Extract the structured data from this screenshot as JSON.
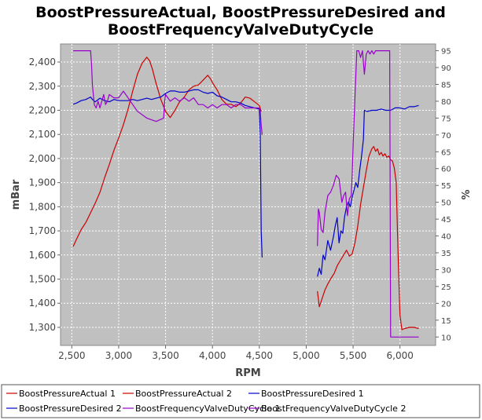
{
  "chart_data": {
    "type": "line",
    "title_lines": [
      "BoostPressureActual, BoostPressureDesired and",
      "BoostFrequencyValveDutyCycle"
    ],
    "xlabel": "RPM",
    "ylabel": "mBar",
    "y2label": "%",
    "xlim": [
      2380,
      6380
    ],
    "ylim": [
      1225,
      2475
    ],
    "y2lim": [
      7.5,
      97
    ],
    "x_ticks": [
      2500,
      3000,
      3500,
      4000,
      4500,
      5000,
      5500,
      6000
    ],
    "x_tick_labels": [
      "2,500",
      "3,000",
      "3,500",
      "4,000",
      "4,500",
      "5,000",
      "5,500",
      "6,000"
    ],
    "y_ticks": [
      1300,
      1400,
      1500,
      1600,
      1700,
      1800,
      1900,
      2000,
      2100,
      2200,
      2300,
      2400
    ],
    "y_tick_labels": [
      "1,300",
      "1,400",
      "1,500",
      "1,600",
      "1,700",
      "1,800",
      "1,900",
      "2,000",
      "2,100",
      "2,200",
      "2,300",
      "2,400"
    ],
    "y2_ticks": [
      10,
      15,
      20,
      25,
      30,
      35,
      40,
      45,
      50,
      55,
      60,
      65,
      70,
      75,
      80,
      85,
      90,
      95
    ],
    "grid": true,
    "legend_position": "bottom",
    "series": [
      {
        "name": "BoostPressureActual 1",
        "axis": "left",
        "color": "#cc0000",
        "x": [
          2515,
          2550,
          2600,
          2650,
          2700,
          2750,
          2800,
          2850,
          2900,
          2950,
          3000,
          3050,
          3100,
          3150,
          3200,
          3250,
          3300,
          3330,
          3360,
          3400,
          3450,
          3500,
          3550,
          3600,
          3650,
          3700,
          3750,
          3800,
          3850,
          3900,
          3950,
          3980,
          4000,
          4050,
          4100,
          4150,
          4200,
          4250,
          4300,
          4350,
          4400,
          4450,
          4500,
          4520
        ],
        "y": [
          1635,
          1665,
          1705,
          1735,
          1775,
          1815,
          1860,
          1920,
          1975,
          2035,
          2085,
          2140,
          2205,
          2280,
          2350,
          2395,
          2420,
          2405,
          2370,
          2310,
          2245,
          2195,
          2170,
          2200,
          2235,
          2255,
          2285,
          2300,
          2305,
          2325,
          2345,
          2330,
          2315,
          2285,
          2245,
          2225,
          2225,
          2215,
          2230,
          2255,
          2250,
          2235,
          2220,
          2195
        ]
      },
      {
        "name": "BoostPressureActual 2",
        "axis": "left",
        "color": "#cc0000",
        "x": [
          5120,
          5140,
          5170,
          5200,
          5230,
          5260,
          5300,
          5330,
          5360,
          5400,
          5430,
          5460,
          5490,
          5520,
          5550,
          5580,
          5610,
          5640,
          5670,
          5700,
          5720,
          5740,
          5760,
          5780,
          5800,
          5820,
          5840,
          5860,
          5880,
          5900,
          5920,
          5940,
          5960,
          5980,
          6000,
          6020,
          6050,
          6100,
          6150,
          6200
        ],
        "y": [
          1450,
          1385,
          1420,
          1455,
          1480,
          1500,
          1525,
          1555,
          1575,
          1600,
          1620,
          1595,
          1605,
          1650,
          1720,
          1810,
          1880,
          1950,
          2010,
          2040,
          2050,
          2030,
          2040,
          2015,
          2025,
          2010,
          2020,
          2005,
          2010,
          1995,
          1990,
          1960,
          1900,
          1600,
          1350,
          1290,
          1295,
          1300,
          1300,
          1295
        ]
      },
      {
        "name": "BoostPressureDesired 1",
        "axis": "left",
        "color": "#0000cc",
        "x": [
          2515,
          2550,
          2600,
          2650,
          2700,
          2720,
          2750,
          2800,
          2850,
          2900,
          2950,
          3000,
          3050,
          3100,
          3150,
          3200,
          3250,
          3300,
          3350,
          3400,
          3450,
          3500,
          3550,
          3600,
          3650,
          3700,
          3750,
          3800,
          3850,
          3900,
          3950,
          4000,
          4050,
          4100,
          4150,
          4200,
          4250,
          4300,
          4350,
          4400,
          4450,
          4500,
          4510,
          4520,
          4530
        ],
        "y": [
          2225,
          2230,
          2240,
          2245,
          2255,
          2245,
          2235,
          2250,
          2240,
          2235,
          2245,
          2240,
          2240,
          2240,
          2245,
          2240,
          2245,
          2250,
          2245,
          2250,
          2255,
          2270,
          2280,
          2280,
          2275,
          2275,
          2280,
          2285,
          2285,
          2275,
          2270,
          2275,
          2260,
          2255,
          2245,
          2235,
          2235,
          2230,
          2220,
          2215,
          2210,
          2205,
          2100,
          1700,
          1590
        ]
      },
      {
        "name": "BoostPressureDesired 2",
        "axis": "left",
        "color": "#0000cc",
        "x": [
          5120,
          5140,
          5160,
          5180,
          5200,
          5230,
          5260,
          5290,
          5310,
          5330,
          5350,
          5370,
          5390,
          5410,
          5430,
          5450,
          5470,
          5490,
          5510,
          5530,
          5550,
          5570,
          5590,
          5610,
          5620,
          5650,
          5700,
          5750,
          5800,
          5850,
          5900,
          5950,
          6000,
          6050,
          6100,
          6150,
          6200
        ],
        "y": [
          1510,
          1545,
          1520,
          1600,
          1580,
          1660,
          1620,
          1675,
          1720,
          1755,
          1650,
          1700,
          1690,
          1760,
          1800,
          1820,
          1800,
          1840,
          1870,
          1900,
          1880,
          1950,
          2010,
          2080,
          2200,
          2195,
          2200,
          2200,
          2205,
          2200,
          2200,
          2210,
          2210,
          2205,
          2215,
          2215,
          2220
        ]
      },
      {
        "name": "BoostFrequencyValveDutyCycle 1",
        "axis": "right",
        "color": "#9900cc",
        "x": [
          2515,
          2560,
          2600,
          2650,
          2700,
          2710,
          2720,
          2740,
          2760,
          2780,
          2800,
          2820,
          2840,
          2860,
          2880,
          2900,
          2950,
          3000,
          3050,
          3100,
          3150,
          3200,
          3300,
          3400,
          3480,
          3490,
          3500,
          3550,
          3600,
          3650,
          3700,
          3750,
          3800,
          3850,
          3900,
          3950,
          4000,
          4050,
          4100,
          4150,
          4200,
          4250,
          4300,
          4350,
          4400,
          4450,
          4500,
          4510,
          4520,
          4530
        ],
        "y": [
          95,
          95,
          95,
          95,
          95,
          91,
          85,
          79,
          78,
          80,
          78,
          80,
          82,
          79,
          80,
          82,
          81,
          81,
          83,
          81,
          79,
          77,
          75,
          74,
          75,
          80,
          82,
          80,
          81,
          80,
          81,
          80,
          81,
          79,
          79,
          78,
          79,
          78,
          79,
          79,
          78,
          79,
          79,
          78,
          78,
          78,
          78,
          77,
          73,
          70
        ]
      },
      {
        "name": "BoostFrequencyValveDutyCycle 2",
        "axis": "right",
        "color": "#9900cc",
        "x": [
          5120,
          5130,
          5140,
          5160,
          5180,
          5200,
          5230,
          5260,
          5290,
          5320,
          5350,
          5380,
          5400,
          5420,
          5440,
          5460,
          5480,
          5490,
          5500,
          5520,
          5540,
          5560,
          5580,
          5600,
          5620,
          5640,
          5660,
          5680,
          5700,
          5720,
          5740,
          5760,
          5800,
          5850,
          5890,
          5900,
          5910,
          5950,
          6000,
          6050,
          6100,
          6150,
          6200
        ],
        "y": [
          37,
          48,
          47,
          42,
          41,
          47,
          52,
          53,
          55,
          58,
          57,
          50,
          52,
          53,
          46,
          51,
          52,
          58,
          67,
          81,
          95,
          95,
          93,
          95,
          88,
          94,
          95,
          94,
          95,
          94,
          95,
          95,
          95,
          95,
          95,
          10,
          10,
          10,
          10,
          10,
          10,
          10,
          10
        ]
      }
    ]
  }
}
